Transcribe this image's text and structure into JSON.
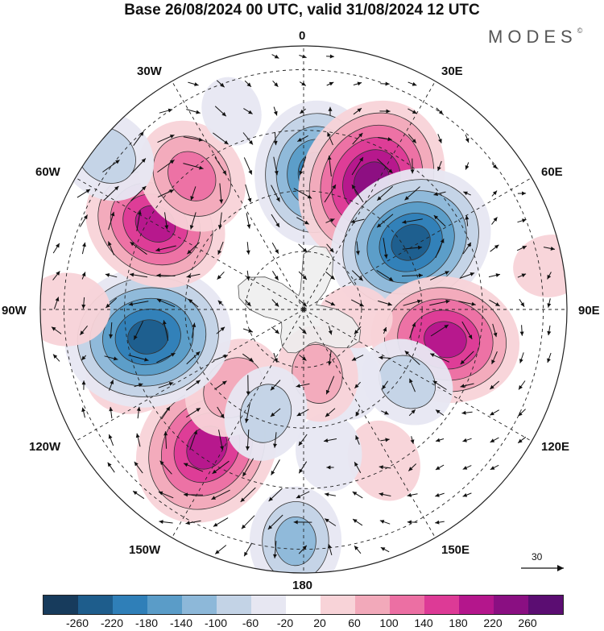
{
  "title": "Base 26/08/2024 00 UTC, valid 31/08/2024 12 UTC",
  "brand": "MODES",
  "brand_mark": "©",
  "longitude_labels": {
    "lon_0": "0",
    "lon_30e": "30E",
    "lon_60e": "60E",
    "lon_90e": "90E",
    "lon_120e": "120E",
    "lon_150e": "150E",
    "lon_180": "180",
    "lon_150w": "150W",
    "lon_120w": "120W",
    "lon_90w": "90W",
    "lon_60w": "60W",
    "lon_30w": "30W"
  },
  "vector_scale_label": "30",
  "colorbar": {
    "colors": [
      "#173b5c",
      "#1e5d8c",
      "#2f7fb8",
      "#5a9cc8",
      "#8db8d9",
      "#c3d3e6",
      "#e7e7f2",
      "#ffffff",
      "#f8d3d8",
      "#f2a9ba",
      "#ec6fa3",
      "#dd3a96",
      "#b4168c",
      "#8a0f82",
      "#5b0d72"
    ],
    "tick_labels": [
      "-260",
      "-220",
      "-180",
      "-140",
      "-100",
      "-60",
      "-20",
      "20",
      "60",
      "100",
      "140",
      "180",
      "220",
      "260"
    ]
  },
  "map": {
    "projection": "south-polar-stereographic",
    "continent_fill": "#ededed",
    "anomalies": [
      {
        "lon": 5,
        "r": 0.52,
        "value": -200
      },
      {
        "lon": 28,
        "r": 0.55,
        "value": 250
      },
      {
        "lon": 58,
        "r": 0.48,
        "value": -250
      },
      {
        "lon": 102,
        "r": 0.55,
        "value": 210
      },
      {
        "lon": 125,
        "r": 0.48,
        "value": -90
      },
      {
        "lon": 152,
        "r": 0.65,
        "value": 60
      },
      {
        "lon": 170,
        "r": 0.55,
        "value": -50
      },
      {
        "lon": 182,
        "r": 0.88,
        "value": -120
      },
      {
        "lon": 150,
        "r": 0.3,
        "value": -70
      },
      {
        "lon": 168,
        "r": 0.25,
        "value": 90
      },
      {
        "lon": -145,
        "r": 0.64,
        "value": 230
      },
      {
        "lon": -138,
        "r": 0.4,
        "value": 110
      },
      {
        "lon": -160,
        "r": 0.42,
        "value": -90
      },
      {
        "lon": -110,
        "r": 0.68,
        "value": 100
      },
      {
        "lon": -100,
        "r": 0.6,
        "value": -250
      },
      {
        "lon": -90,
        "r": 0.9,
        "value": 70
      },
      {
        "lon": -60,
        "r": 0.65,
        "value": 200
      },
      {
        "lon": -40,
        "r": 0.66,
        "value": 140
      },
      {
        "lon": -52,
        "r": 0.95,
        "value": -100
      },
      {
        "lon": -20,
        "r": 0.8,
        "value": -30
      },
      {
        "lon": 80,
        "r": 0.95,
        "value": 40
      },
      {
        "lon": 98,
        "r": 0.2,
        "value": 40
      }
    ]
  }
}
